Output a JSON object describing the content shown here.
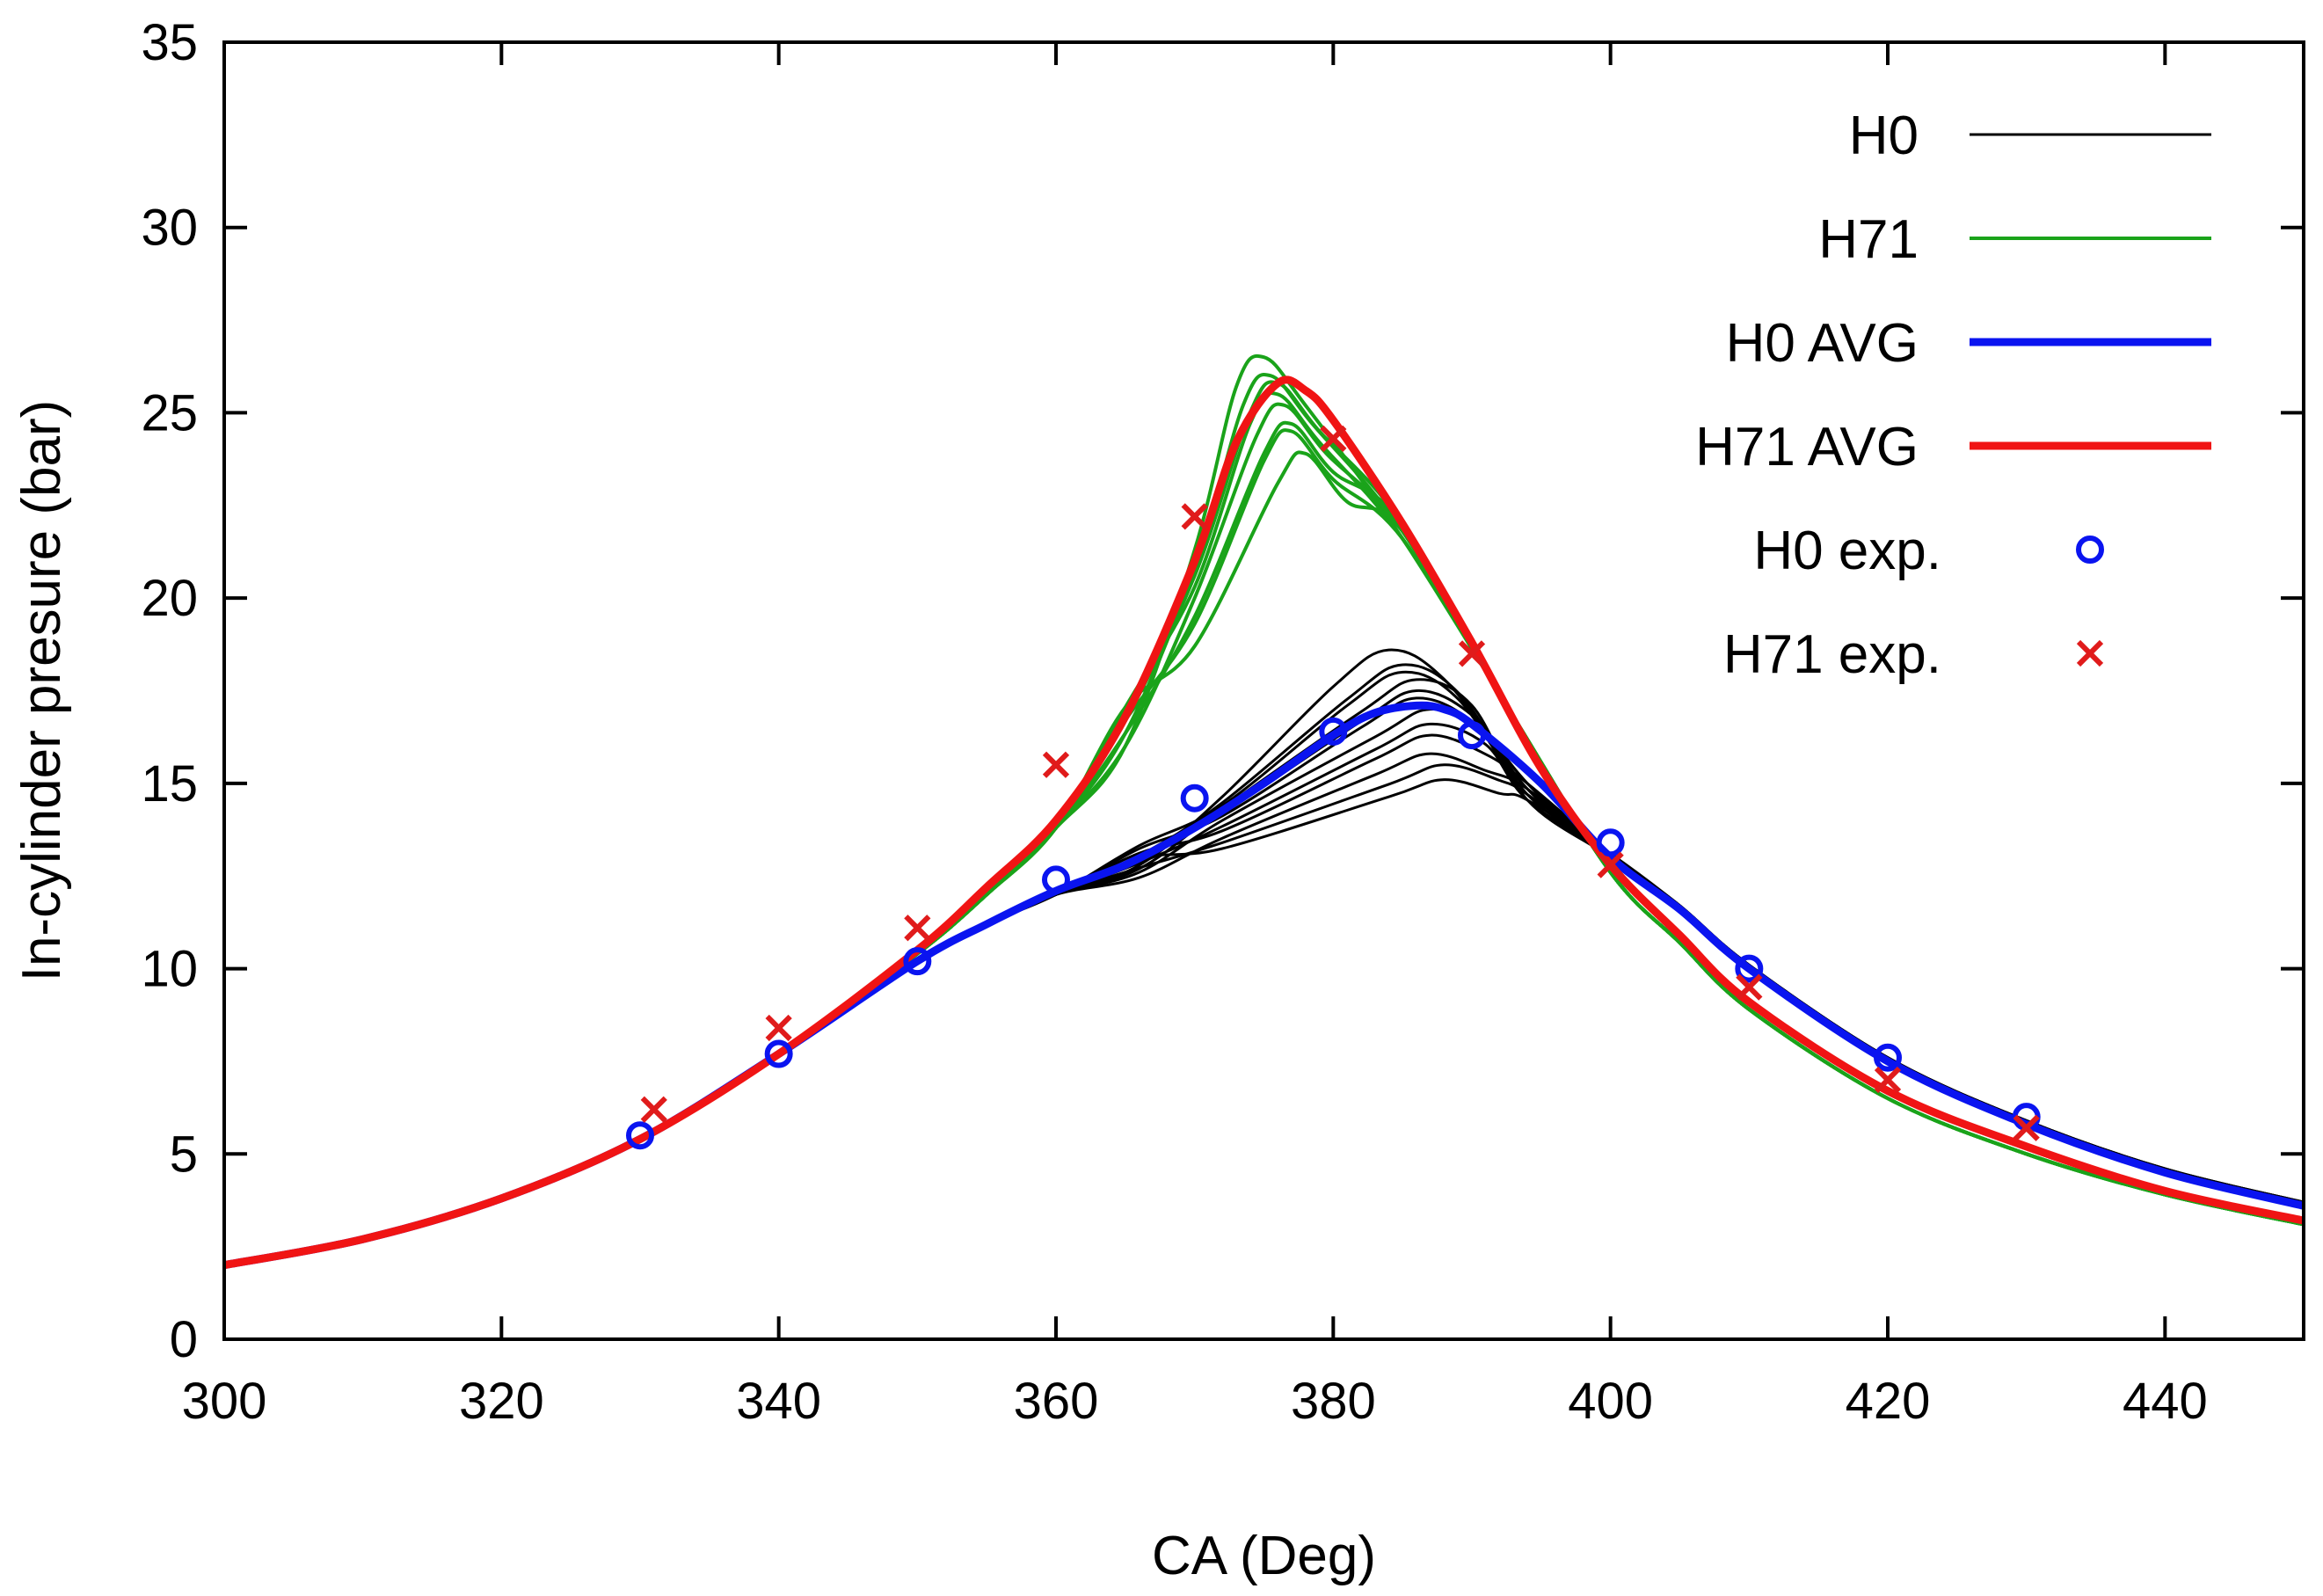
{
  "chart_data": {
    "type": "line",
    "title": "",
    "xlabel": "CA (Deg)",
    "ylabel": "In-cylinder presure (bar)",
    "xlim": [
      300,
      450
    ],
    "ylim": [
      0,
      35
    ],
    "xticks": [
      300,
      320,
      340,
      360,
      380,
      400,
      420,
      440
    ],
    "yticks": [
      0,
      5,
      10,
      15,
      20,
      25,
      30,
      35
    ],
    "grid": false,
    "legend_position": "top-right",
    "colors": {
      "H0": "#000000",
      "H71": "#1aa31a",
      "H0 AVG": "#0a14f0",
      "H71 AVG": "#f01414",
      "H0 exp.": "#0a14f0",
      "H71 exp.": "#e01b1b"
    },
    "legend": [
      {
        "label": "H0",
        "style": "line",
        "color": "#000000",
        "width": 3
      },
      {
        "label": "H71",
        "style": "line",
        "color": "#1aa31a",
        "width": 4
      },
      {
        "label": "H0 AVG",
        "style": "line",
        "color": "#0a14f0",
        "width": 9
      },
      {
        "label": "H71 AVG",
        "style": "line",
        "color": "#f01414",
        "width": 9
      },
      {
        "label": "H0 exp.",
        "style": "circle",
        "color": "#0a14f0"
      },
      {
        "label": "H71 exp.",
        "style": "cross",
        "color": "#e01b1b"
      }
    ],
    "series": [
      {
        "name": "H0 AVG",
        "x": [
          300,
          310,
          320,
          330,
          340,
          350,
          355,
          360,
          365,
          370,
          375,
          380,
          383,
          386,
          388,
          390,
          395,
          400,
          405,
          410,
          420,
          430,
          440,
          450
        ],
        "y": [
          2.0,
          2.7,
          3.8,
          5.4,
          7.7,
          10.2,
          11.2,
          12.1,
          12.8,
          13.8,
          15.0,
          16.3,
          16.9,
          17.1,
          17.0,
          16.6,
          15.0,
          13.0,
          11.6,
          10.0,
          7.5,
          5.8,
          4.5,
          3.6
        ]
      },
      {
        "name": "H71 AVG",
        "x": [
          300,
          310,
          320,
          330,
          340,
          350,
          355,
          360,
          365,
          370,
          373,
          376,
          378,
          380,
          385,
          390,
          395,
          400,
          405,
          410,
          420,
          430,
          440,
          450
        ],
        "y": [
          2.0,
          2.7,
          3.8,
          5.4,
          7.7,
          10.5,
          12.2,
          14.0,
          16.8,
          21.0,
          24.2,
          25.8,
          25.6,
          24.8,
          22.0,
          18.8,
          15.4,
          12.8,
          10.9,
          9.1,
          6.7,
          5.2,
          4.0,
          3.2
        ]
      },
      {
        "name": "H0 exp.",
        "x": [
          330,
          340,
          350,
          360,
          370,
          380,
          390,
          400,
          410,
          420,
          430
        ],
        "y": [
          5.5,
          7.7,
          10.2,
          12.4,
          14.6,
          16.4,
          16.3,
          13.4,
          10.0,
          7.6,
          6.0
        ]
      },
      {
        "name": "H71 exp.",
        "x": [
          331,
          340,
          350,
          360,
          370,
          380,
          390,
          400,
          410,
          420,
          430
        ],
        "y": [
          6.2,
          8.4,
          11.1,
          15.5,
          22.2,
          24.3,
          18.5,
          12.8,
          9.5,
          7.0,
          5.7
        ]
      }
    ],
    "cycles": {
      "H0": {
        "shared_x": [
          300,
          310,
          320,
          330,
          340,
          350,
          355,
          360
        ],
        "shared_y": [
          2.0,
          2.7,
          3.8,
          5.4,
          7.7,
          10.2,
          11.2,
          12.0
        ],
        "peaks": [
          18.6,
          18.2,
          18.0,
          17.8,
          17.5,
          17.3,
          17.0,
          16.6,
          16.3,
          15.8,
          15.5,
          15.1
        ],
        "peak_ca": [
          384,
          385,
          385,
          386,
          386,
          386,
          387,
          387,
          387,
          387,
          388,
          388
        ],
        "tail_x": [
          400,
          405,
          410,
          420,
          430,
          440,
          450
        ],
        "tail_y": [
          13.0,
          11.6,
          10.0,
          7.5,
          5.8,
          4.5,
          3.6
        ]
      },
      "H71": {
        "shared_x": [
          300,
          310,
          320,
          330,
          340,
          350,
          355,
          360
        ],
        "shared_y": [
          2.0,
          2.7,
          3.8,
          5.4,
          7.7,
          10.4,
          12.0,
          13.8
        ],
        "peaks": [
          26.5,
          26.0,
          25.8,
          25.5,
          25.2,
          24.7,
          24.5,
          23.9
        ],
        "peak_ca": [
          375,
          375.5,
          376,
          376,
          376.5,
          377,
          377,
          378
        ],
        "tail_x": [
          393,
          400,
          405,
          410,
          420,
          430,
          440,
          450
        ],
        "tail_y": [
          16.8,
          12.6,
          10.7,
          8.9,
          6.5,
          5.0,
          3.9,
          3.1
        ]
      }
    }
  }
}
